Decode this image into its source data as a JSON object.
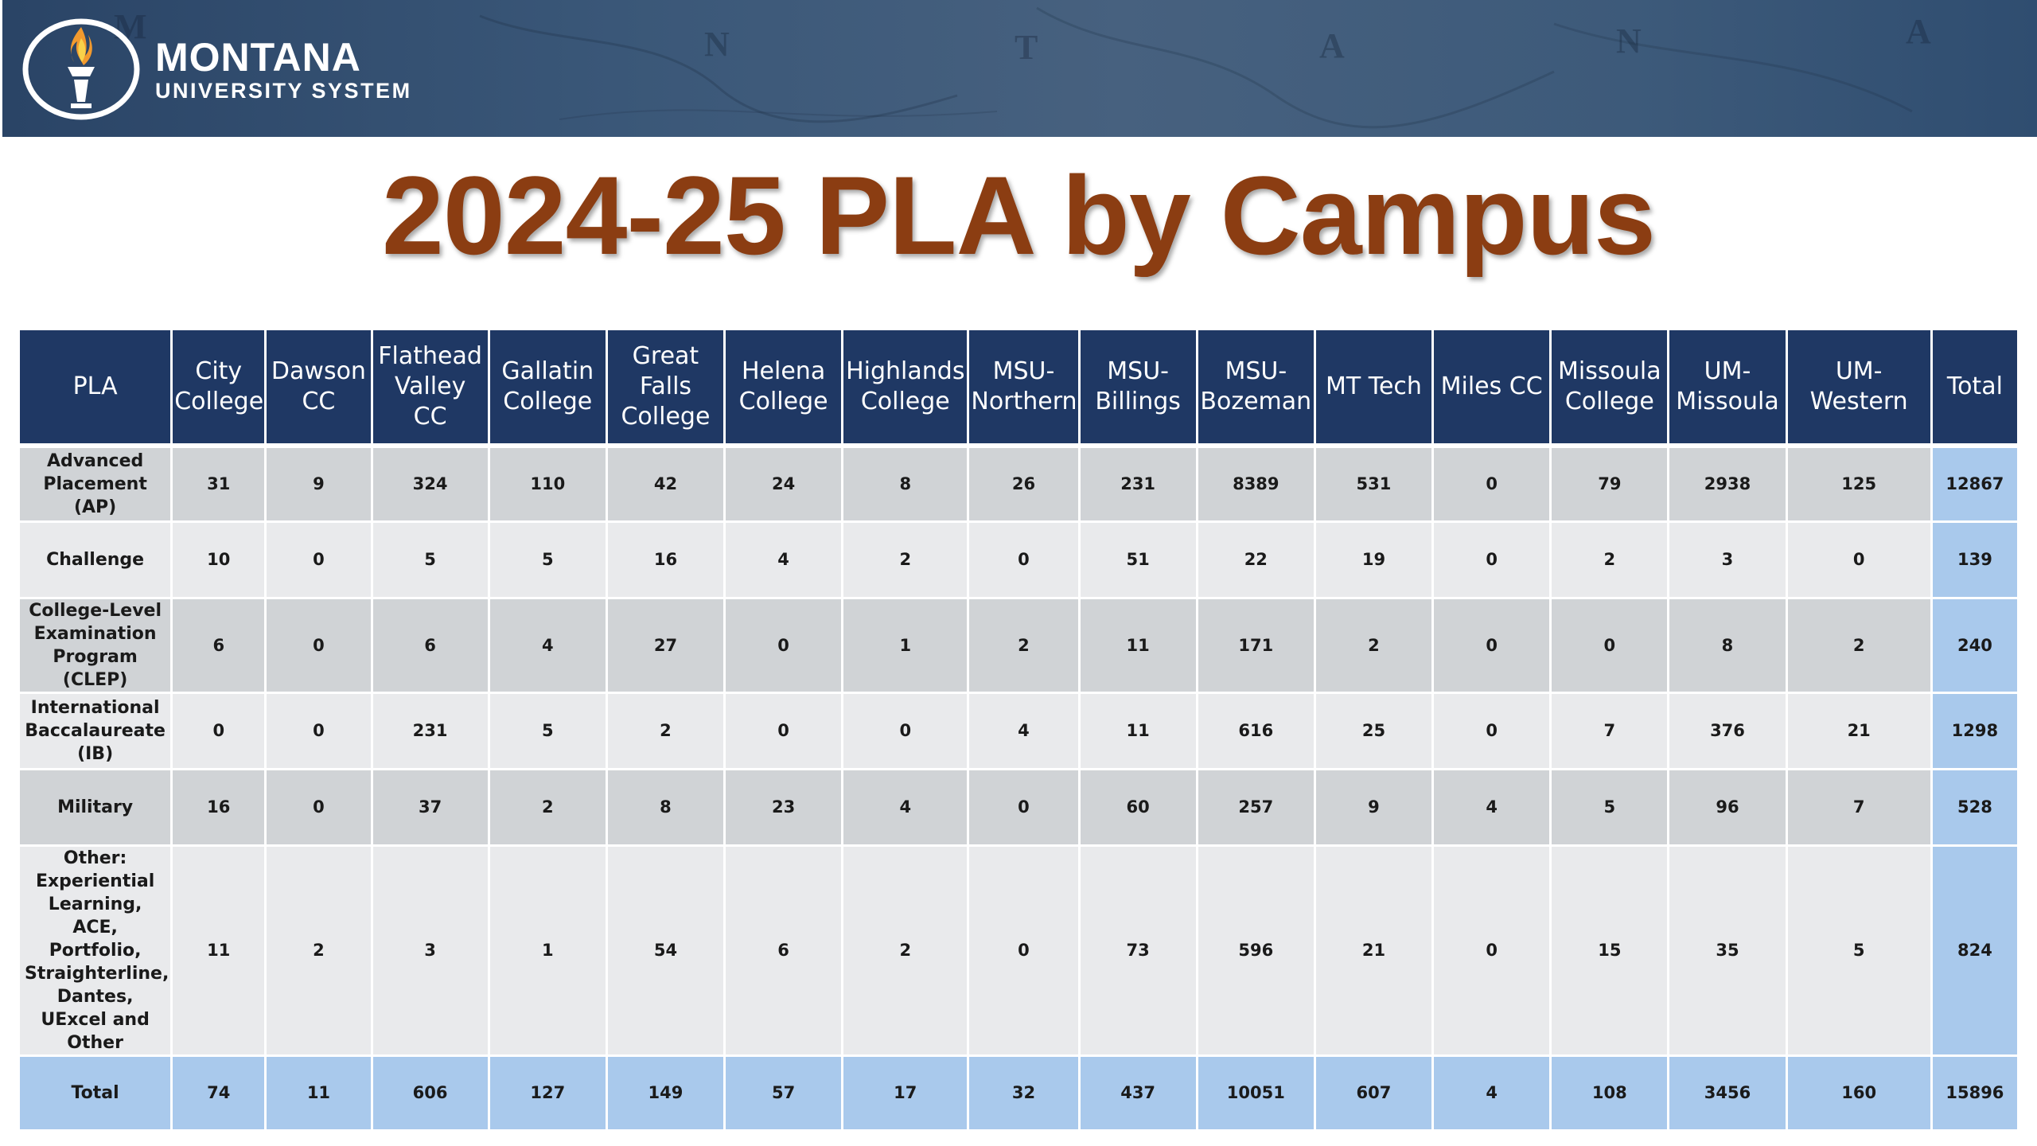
{
  "banner": {
    "logo_name": "MONTANA",
    "logo_subtitle": "UNIVERSITY SYSTEM",
    "map_letters": [
      "M",
      "N",
      "T",
      "A",
      "N",
      "A"
    ],
    "colors": {
      "banner": "#3a5778",
      "title": "#8b3d12",
      "header": "#1f3864",
      "total_highlight": "#a9c9ec"
    }
  },
  "title": "2024-25 PLA by Campus",
  "table": {
    "columns": [
      "PLA",
      "City College",
      "Dawson CC",
      "Flathead Valley CC",
      "Gallatin College",
      "Great Falls College",
      "Helena College",
      "Highlands College",
      "MSU-Northern",
      "MSU-Billings",
      "MSU-Bozeman",
      "MT Tech",
      "Miles CC",
      "Missoula College",
      "UM-Missoula",
      "UM-Western",
      "Total"
    ],
    "rows": [
      {
        "label": "Advanced Placement (AP)",
        "values": [
          "31",
          "9",
          "324",
          "110",
          "42",
          "24",
          "8",
          "26",
          "231",
          "8389",
          "531",
          "0",
          "79",
          "2938",
          "125"
        ],
        "total": "12867"
      },
      {
        "label": "Challenge",
        "values": [
          "10",
          "0",
          "5",
          "5",
          "16",
          "4",
          "2",
          "0",
          "51",
          "22",
          "19",
          "0",
          "2",
          "3",
          "0"
        ],
        "total": "139"
      },
      {
        "label": "College-Level Examination Program (CLEP)",
        "values": [
          "6",
          "0",
          "6",
          "4",
          "27",
          "0",
          "1",
          "2",
          "11",
          "171",
          "2",
          "0",
          "0",
          "8",
          "2"
        ],
        "total": "240"
      },
      {
        "label": "International Baccalaureate (IB)",
        "values": [
          "0",
          "0",
          "231",
          "5",
          "2",
          "0",
          "0",
          "4",
          "11",
          "616",
          "25",
          "0",
          "7",
          "376",
          "21"
        ],
        "total": "1298"
      },
      {
        "label": "Military",
        "values": [
          "16",
          "0",
          "37",
          "2",
          "8",
          "23",
          "4",
          "0",
          "60",
          "257",
          "9",
          "4",
          "5",
          "96",
          "7"
        ],
        "total": "528"
      },
      {
        "label": "Other: Experiential Learning, ACE, Portfolio, Straighterline, Dantes, UExcel and Other",
        "values": [
          "11",
          "2",
          "3",
          "1",
          "54",
          "6",
          "2",
          "0",
          "73",
          "596",
          "21",
          "0",
          "15",
          "35",
          "5"
        ],
        "total": "824"
      }
    ],
    "total_row": {
      "label": "Total",
      "values": [
        "74",
        "11",
        "606",
        "127",
        "149",
        "57",
        "17",
        "32",
        "437",
        "10051",
        "607",
        "4",
        "108",
        "3456",
        "160"
      ],
      "total": "15896"
    }
  }
}
